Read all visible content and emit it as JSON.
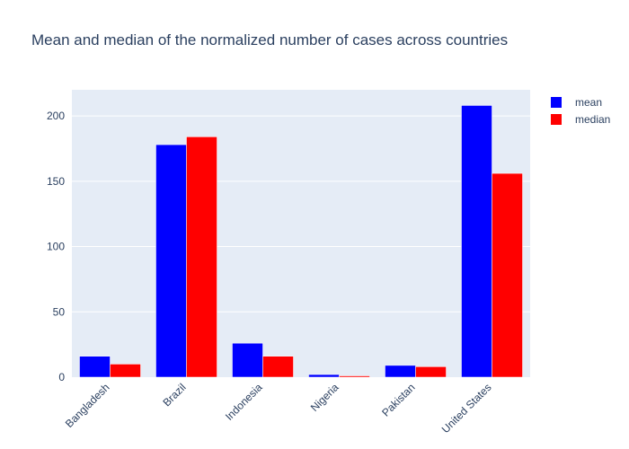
{
  "chart_data": {
    "type": "bar",
    "title": "Mean and median of the normalized number of cases across countries",
    "xlabel": "",
    "ylabel": "",
    "categories": [
      "Bangladesh",
      "Brazil",
      "Indonesia",
      "Nigeria",
      "Pakistan",
      "United States"
    ],
    "series": [
      {
        "name": "mean",
        "color": "#0000ff",
        "values": [
          16,
          178,
          26,
          2,
          9,
          208
        ]
      },
      {
        "name": "median",
        "color": "#ff0000",
        "values": [
          10,
          184,
          16,
          1,
          8,
          156
        ]
      }
    ],
    "ylim": [
      0,
      220
    ],
    "yticks": [
      0,
      50,
      100,
      150,
      200
    ],
    "grid": true,
    "legend_position": "top-right",
    "plot_background": "#e5ecf6",
    "text_color": "#2a3f5f"
  }
}
